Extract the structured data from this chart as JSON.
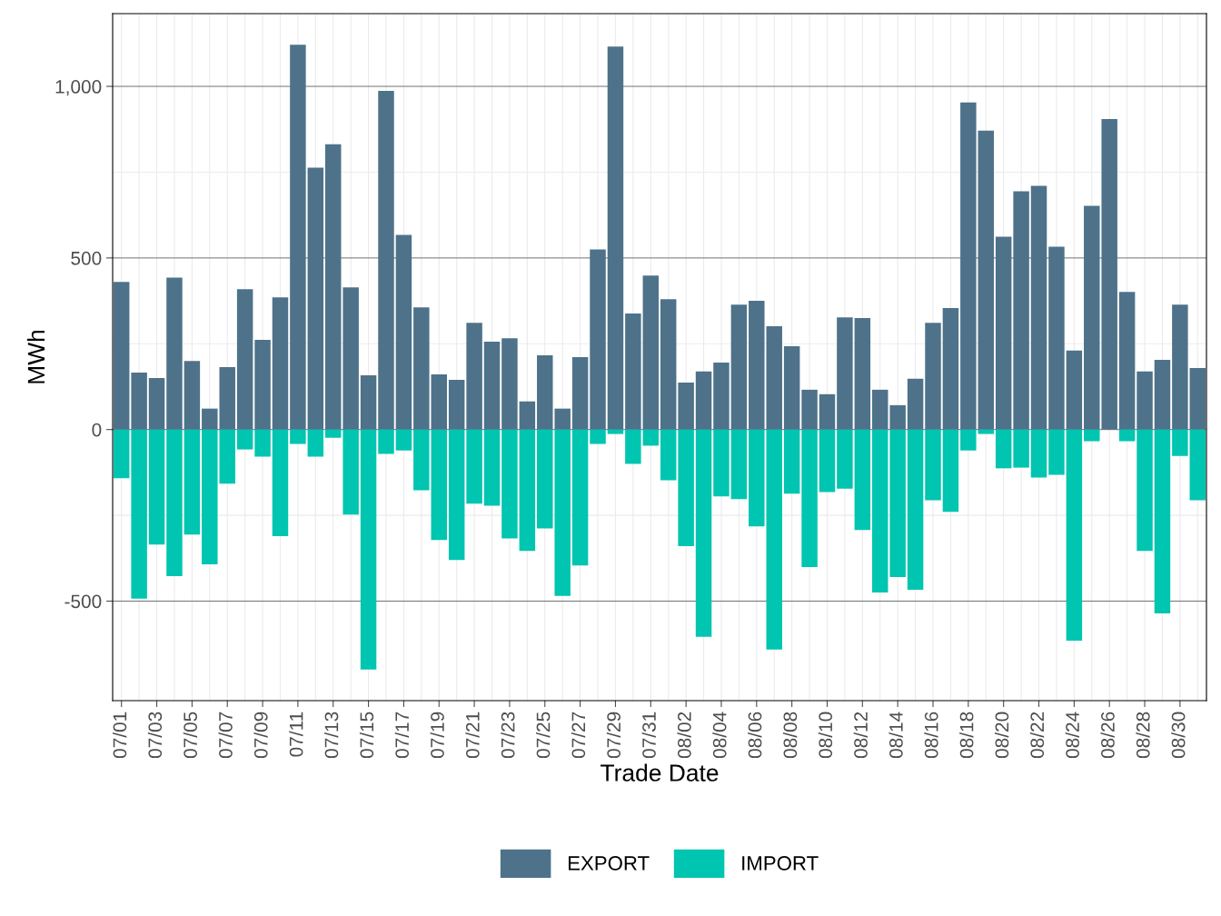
{
  "chart_data": {
    "type": "bar",
    "stacked": true,
    "xlabel": "Trade Date",
    "ylabel": "MWh",
    "categories": [
      "07/01",
      null,
      "07/03",
      null,
      "07/05",
      null,
      "07/07",
      null,
      "07/09",
      null,
      "07/11",
      null,
      "07/13",
      null,
      "07/15",
      null,
      "07/17",
      null,
      "07/19",
      null,
      "07/21",
      null,
      "07/23",
      null,
      "07/25",
      null,
      "07/27",
      null,
      "07/29",
      null,
      "07/31",
      null,
      "08/02",
      null,
      "08/04",
      null,
      "08/06",
      null,
      "08/08",
      null,
      "08/10",
      null,
      "08/12",
      null,
      "08/14",
      null,
      "08/16",
      null,
      "08/18",
      null,
      "08/20",
      null,
      "08/22",
      null,
      "08/24",
      null,
      "08/26",
      null,
      "08/28",
      null,
      "08/30",
      null
    ],
    "series": [
      {
        "name": "EXPORT",
        "color": "#4e7289",
        "values": [
          430,
          166,
          150,
          443,
          200,
          61,
          182,
          409,
          261,
          385,
          1121,
          763,
          831,
          414,
          158,
          987,
          567,
          356,
          161,
          145,
          311,
          256,
          266,
          82,
          216,
          61,
          211,
          525,
          1116,
          338,
          449,
          380,
          137,
          169,
          195,
          364,
          375,
          301,
          243,
          116,
          103,
          327,
          325,
          116,
          71,
          148,
          311,
          354,
          953,
          871,
          562,
          694,
          710,
          533,
          230,
          652,
          905,
          401,
          169,
          203,
          364,
          179
        ]
      },
      {
        "name": "IMPORT",
        "color": "#00c5b0",
        "values": [
          -142,
          -493,
          -335,
          -427,
          -306,
          -393,
          -158,
          -58,
          -79,
          -311,
          -42,
          -79,
          -24,
          -248,
          -699,
          -71,
          -61,
          -177,
          -322,
          -380,
          -216,
          -222,
          -317,
          -354,
          -288,
          -485,
          -396,
          -42,
          -13,
          -100,
          -47,
          -148,
          -340,
          -604,
          -195,
          -203,
          -282,
          -641,
          -187,
          -401,
          -182,
          -172,
          -293,
          -475,
          -430,
          -467,
          -206,
          -240,
          -61,
          -13,
          -113,
          -111,
          -140,
          -132,
          -615,
          -34,
          null,
          -34,
          -354,
          -536,
          -77,
          -206
        ]
      }
    ],
    "ylim": [
      -790,
      1212
    ],
    "yticks": [
      {
        "value": -500,
        "label": "-500"
      },
      0,
      500,
      {
        "value": 1000,
        "label": "1,000"
      }
    ],
    "grid": true,
    "legend": "bottom"
  }
}
